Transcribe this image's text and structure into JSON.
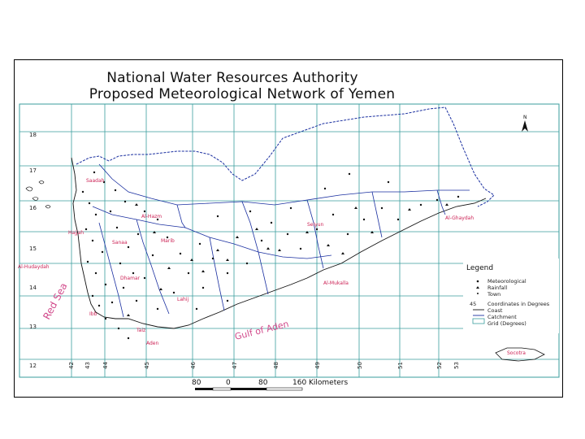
{
  "title_line1": "National Water Resources Authority",
  "title_line2": "Proposed Meteorological Network of Yemen",
  "north_label": "N",
  "latitudes": [
    "18",
    "17",
    "16",
    "15",
    "14",
    "13",
    "12"
  ],
  "longitudes": [
    "42",
    "43",
    "44",
    "45",
    "46",
    "47",
    "48",
    "49",
    "50",
    "51",
    "52",
    "53"
  ],
  "cities": [
    "Saadah",
    "Al-Hazm",
    "Hajjah",
    "Sanaa",
    "Marib",
    "Al-Hudaydah",
    "Dhamar",
    "Ibb",
    "Taiz",
    "Aden",
    "Seiyun",
    "Al-Mukalla",
    "Al-Ghaydah",
    "Lahij"
  ],
  "sea_labels": {
    "red_sea": "Red Sea",
    "gulf": "Gulf of Aden"
  },
  "legend": {
    "title": "Legend",
    "items": [
      "Meteorological",
      "Rainfall",
      "Town",
      "Coordinates in Degrees",
      "Coast",
      "Catchment",
      "Grid (Degrees)"
    ],
    "coord_sample": "45"
  },
  "socotra_label": "Socotra",
  "scale": {
    "ticks": [
      "80",
      "0",
      "80",
      "160"
    ],
    "unit": "Kilometers"
  },
  "colors": {
    "grid": "#3a9e9e",
    "boundary": "#1a2fa0",
    "city": "#cc2255",
    "sea": "#d24b8c"
  }
}
